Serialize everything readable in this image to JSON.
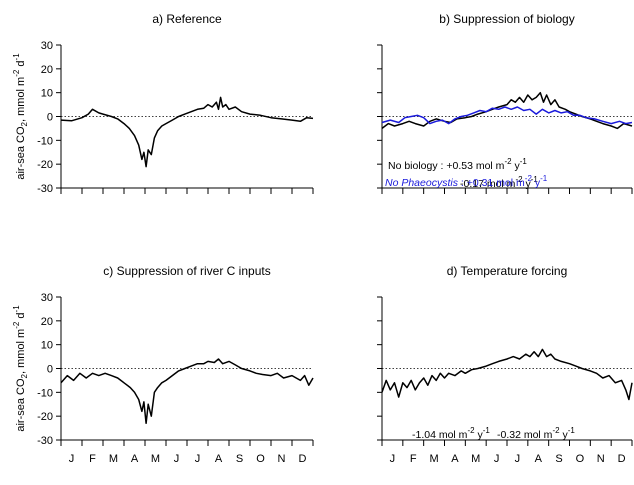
{
  "ylabel_main": "air-sea CO",
  "ylabel_sub": "2",
  "ylabel_unit": ", mmol m",
  "ylabel_exp1": "-2",
  "ylabel_unit2": " d",
  "ylabel_exp2": "-1",
  "months": [
    "J",
    "F",
    "M",
    "A",
    "M",
    "J",
    "J",
    "A",
    "S",
    "O",
    "N",
    "D"
  ],
  "chart_data": [
    {
      "type": "line",
      "title": "a) Reference",
      "ylim": [
        -30,
        30
      ],
      "yticks": [
        30,
        20,
        10,
        0,
        -10,
        -20,
        -30
      ],
      "x_unit": "month",
      "zero_line": "dotted",
      "series": [
        {
          "color": "#000000",
          "points": [
            [
              0,
              -1.5
            ],
            [
              0.5,
              -1.8
            ],
            [
              1,
              -0.5
            ],
            [
              1.3,
              1
            ],
            [
              1.5,
              3
            ],
            [
              1.8,
              1.5
            ],
            [
              2,
              1
            ],
            [
              2.4,
              0
            ],
            [
              2.7,
              -1
            ],
            [
              3,
              -3
            ],
            [
              3.25,
              -5
            ],
            [
              3.5,
              -8
            ],
            [
              3.7,
              -12
            ],
            [
              3.85,
              -18
            ],
            [
              3.95,
              -15
            ],
            [
              4.05,
              -21
            ],
            [
              4.15,
              -14
            ],
            [
              4.3,
              -16
            ],
            [
              4.45,
              -9
            ],
            [
              4.6,
              -6
            ],
            [
              4.8,
              -4
            ],
            [
              5,
              -3
            ],
            [
              5.3,
              -1.5
            ],
            [
              5.6,
              0
            ],
            [
              5.9,
              1
            ],
            [
              6.2,
              2
            ],
            [
              6.5,
              3
            ],
            [
              6.8,
              3.5
            ],
            [
              7,
              5
            ],
            [
              7.2,
              4
            ],
            [
              7.4,
              6
            ],
            [
              7.5,
              3
            ],
            [
              7.6,
              8
            ],
            [
              7.7,
              4
            ],
            [
              7.85,
              5
            ],
            [
              8,
              3
            ],
            [
              8.3,
              4
            ],
            [
              8.6,
              2
            ],
            [
              9,
              1
            ],
            [
              9.5,
              0.5
            ],
            [
              10,
              -0.5
            ],
            [
              10.5,
              -1
            ],
            [
              11,
              -1.5
            ],
            [
              11.4,
              -2
            ],
            [
              11.7,
              -0.5
            ],
            [
              12,
              -0.8
            ]
          ]
        }
      ],
      "annotations": [
        {
          "text": "-0.17 mol m",
          "exp1": "-2",
          "mid": " y",
          "exp2": "-1",
          "color": "#000000"
        }
      ]
    },
    {
      "type": "line",
      "title": "b) Suppression of biology",
      "ylim": [
        -30,
        30
      ],
      "x_unit": "month",
      "zero_line": "dotted",
      "series": [
        {
          "name": "No biology",
          "color": "#000000",
          "points": [
            [
              0,
              -5
            ],
            [
              0.3,
              -3
            ],
            [
              0.6,
              -4
            ],
            [
              1,
              -3
            ],
            [
              1.3,
              -2
            ],
            [
              1.6,
              -3
            ],
            [
              2,
              -4
            ],
            [
              2.3,
              -2
            ],
            [
              2.6,
              -1
            ],
            [
              3,
              -2
            ],
            [
              3.3,
              -2.5
            ],
            [
              3.6,
              -1
            ],
            [
              4,
              -0.5
            ],
            [
              4.3,
              0
            ],
            [
              4.6,
              1
            ],
            [
              5,
              2
            ],
            [
              5.3,
              3
            ],
            [
              5.6,
              4
            ],
            [
              6,
              5
            ],
            [
              6.2,
              7
            ],
            [
              6.4,
              6
            ],
            [
              6.6,
              8
            ],
            [
              6.8,
              6
            ],
            [
              7,
              9
            ],
            [
              7.2,
              7
            ],
            [
              7.4,
              8
            ],
            [
              7.6,
              10
            ],
            [
              7.75,
              6
            ],
            [
              7.9,
              9
            ],
            [
              8.1,
              5
            ],
            [
              8.3,
              7
            ],
            [
              8.5,
              4
            ],
            [
              8.8,
              3
            ],
            [
              9,
              2
            ],
            [
              9.3,
              1
            ],
            [
              9.6,
              0
            ],
            [
              10,
              -1
            ],
            [
              10.3,
              -2
            ],
            [
              10.6,
              -3
            ],
            [
              11,
              -4
            ],
            [
              11.3,
              -5
            ],
            [
              11.6,
              -3
            ],
            [
              12,
              -4
            ]
          ]
        },
        {
          "name": "No Phaeocystis",
          "color": "#1a1adb",
          "points": [
            [
              0,
              -2.5
            ],
            [
              0.4,
              -1.5
            ],
            [
              0.8,
              -2.5
            ],
            [
              1.1,
              -0.5
            ],
            [
              1.4,
              0
            ],
            [
              1.7,
              0.5
            ],
            [
              2,
              -0.5
            ],
            [
              2.3,
              -3
            ],
            [
              2.6,
              -2
            ],
            [
              2.9,
              -1.5
            ],
            [
              3.2,
              -3
            ],
            [
              3.5,
              -1
            ],
            [
              3.8,
              0
            ],
            [
              4.1,
              0.5
            ],
            [
              4.4,
              1.5
            ],
            [
              4.7,
              2.5
            ],
            [
              5,
              2
            ],
            [
              5.3,
              3.5
            ],
            [
              5.6,
              3
            ],
            [
              5.9,
              4
            ],
            [
              6.2,
              3
            ],
            [
              6.5,
              4
            ],
            [
              6.8,
              2.5
            ],
            [
              7.1,
              3
            ],
            [
              7.4,
              1
            ],
            [
              7.7,
              3
            ],
            [
              8,
              1.5
            ],
            [
              8.3,
              2.5
            ],
            [
              8.6,
              1.5
            ],
            [
              8.9,
              2
            ],
            [
              9.2,
              0.5
            ],
            [
              9.5,
              0.5
            ],
            [
              9.8,
              -0.5
            ],
            [
              10.2,
              -1
            ],
            [
              10.6,
              -2
            ],
            [
              11,
              -3
            ],
            [
              11.4,
              -2
            ],
            [
              11.7,
              -3
            ],
            [
              12,
              -2.5
            ]
          ]
        }
      ],
      "annotations": [
        {
          "text": "No biology : +0.53 mol m",
          "exp1": "-2",
          "mid": " y",
          "exp2": "-1",
          "color": "#000000",
          "italic_part": ""
        },
        {
          "italic_part": "No Phaeocystis",
          "text": " : +0.31 mol m",
          "exp1": "-2",
          "mid": " y",
          "exp2": "-1",
          "color": "#1a1adb"
        }
      ]
    },
    {
      "type": "line",
      "title": "c) Suppression of river C inputs",
      "ylim": [
        -30,
        30
      ],
      "yticks": [
        30,
        20,
        10,
        0,
        -10,
        -20,
        -30
      ],
      "x_unit": "month",
      "zero_line": "dotted",
      "series": [
        {
          "color": "#000000",
          "points": [
            [
              0,
              -6
            ],
            [
              0.3,
              -3
            ],
            [
              0.6,
              -5
            ],
            [
              0.9,
              -2
            ],
            [
              1.2,
              -4
            ],
            [
              1.5,
              -2
            ],
            [
              1.8,
              -3
            ],
            [
              2.1,
              -2
            ],
            [
              2.4,
              -3
            ],
            [
              2.7,
              -4
            ],
            [
              3,
              -6
            ],
            [
              3.3,
              -8
            ],
            [
              3.5,
              -10
            ],
            [
              3.7,
              -13
            ],
            [
              3.85,
              -18
            ],
            [
              3.95,
              -14
            ],
            [
              4.05,
              -23
            ],
            [
              4.15,
              -15
            ],
            [
              4.3,
              -20
            ],
            [
              4.45,
              -10
            ],
            [
              4.6,
              -8
            ],
            [
              4.8,
              -6
            ],
            [
              5,
              -5
            ],
            [
              5.3,
              -3
            ],
            [
              5.6,
              -1
            ],
            [
              5.9,
              0
            ],
            [
              6.2,
              1
            ],
            [
              6.5,
              2
            ],
            [
              6.8,
              2
            ],
            [
              7,
              3
            ],
            [
              7.3,
              2.5
            ],
            [
              7.5,
              4
            ],
            [
              7.7,
              2
            ],
            [
              8,
              3
            ],
            [
              8.3,
              1.5
            ],
            [
              8.6,
              0
            ],
            [
              9,
              -1
            ],
            [
              9.3,
              -2
            ],
            [
              9.6,
              -2.5
            ],
            [
              10,
              -3
            ],
            [
              10.3,
              -2
            ],
            [
              10.6,
              -4
            ],
            [
              11,
              -3
            ],
            [
              11.4,
              -5
            ],
            [
              11.6,
              -3
            ],
            [
              11.8,
              -7
            ],
            [
              12,
              -4
            ]
          ]
        }
      ],
      "annotations": [
        {
          "text": "-1.04 mol m",
          "exp1": "-2",
          "mid": " y",
          "exp2": "-1",
          "color": "#000000"
        }
      ]
    },
    {
      "type": "line",
      "title": "d) Temperature forcing",
      "ylim": [
        -30,
        30
      ],
      "x_unit": "month",
      "zero_line": "dotted",
      "series": [
        {
          "color": "#000000",
          "points": [
            [
              0,
              -10
            ],
            [
              0.2,
              -5
            ],
            [
              0.4,
              -9
            ],
            [
              0.6,
              -6
            ],
            [
              0.8,
              -12
            ],
            [
              1,
              -6
            ],
            [
              1.2,
              -8
            ],
            [
              1.4,
              -5
            ],
            [
              1.6,
              -9
            ],
            [
              1.8,
              -6
            ],
            [
              2,
              -4
            ],
            [
              2.2,
              -7
            ],
            [
              2.4,
              -3
            ],
            [
              2.6,
              -5
            ],
            [
              2.8,
              -2
            ],
            [
              3,
              -4
            ],
            [
              3.2,
              -2
            ],
            [
              3.5,
              -3
            ],
            [
              3.8,
              -1
            ],
            [
              4,
              -2
            ],
            [
              4.3,
              -0.5
            ],
            [
              4.6,
              0
            ],
            [
              5,
              1
            ],
            [
              5.3,
              2
            ],
            [
              5.6,
              3
            ],
            [
              6,
              4
            ],
            [
              6.3,
              5
            ],
            [
              6.6,
              4
            ],
            [
              6.9,
              6
            ],
            [
              7.1,
              5
            ],
            [
              7.3,
              7
            ],
            [
              7.5,
              5
            ],
            [
              7.7,
              8
            ],
            [
              7.9,
              5
            ],
            [
              8.1,
              6
            ],
            [
              8.3,
              4
            ],
            [
              8.6,
              3
            ],
            [
              9,
              2
            ],
            [
              9.3,
              1
            ],
            [
              9.6,
              0
            ],
            [
              10,
              -1
            ],
            [
              10.3,
              -2
            ],
            [
              10.6,
              -4
            ],
            [
              10.9,
              -3
            ],
            [
              11.2,
              -6
            ],
            [
              11.5,
              -5
            ],
            [
              11.7,
              -9
            ],
            [
              11.85,
              -13
            ],
            [
              12,
              -6
            ]
          ]
        }
      ],
      "annotations": [
        {
          "text": "-0.32 mol m",
          "exp1": "-2",
          "mid": " y",
          "exp2": "-1",
          "color": "#000000"
        }
      ]
    }
  ]
}
